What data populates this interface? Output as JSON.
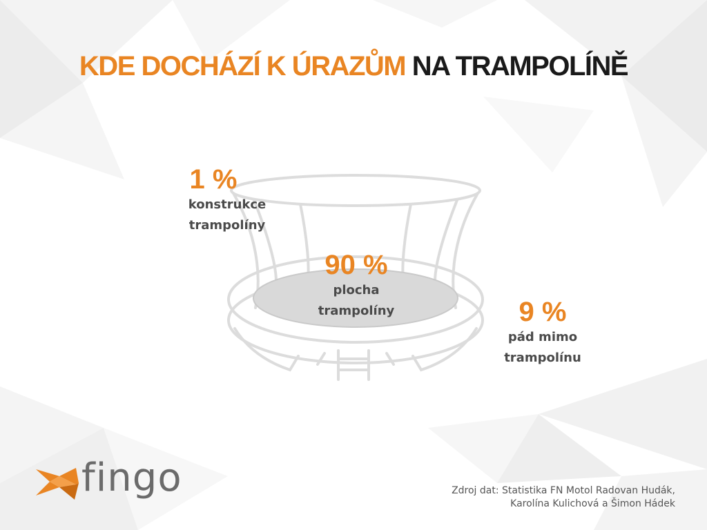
{
  "title": {
    "accent": "KDE DOCHÁZÍ K ÚRAZŮM",
    "rest": "NA TRAMPOLÍNĚ"
  },
  "stats": [
    {
      "percent": "1 %",
      "label": "konstrukce\ntrampolíny"
    },
    {
      "percent": "90 %",
      "label": "plocha\ntrampolíny"
    },
    {
      "percent": "9 %",
      "label": "pád mimo\ntrampolínu"
    }
  ],
  "logo": {
    "text": "fingo"
  },
  "source": "Zdroj dat: Statistika FN Motol Radovan Hudák,\nKarolína Kulichová a Šimon Hádek",
  "colors": {
    "accent": "#e98523",
    "text": "#4a4a4a",
    "outline": "#dcdcdc",
    "mat": "#d9d9d9"
  },
  "icons": {
    "trampoline": "trampoline-illustration",
    "logo": "fish-logo-icon"
  }
}
